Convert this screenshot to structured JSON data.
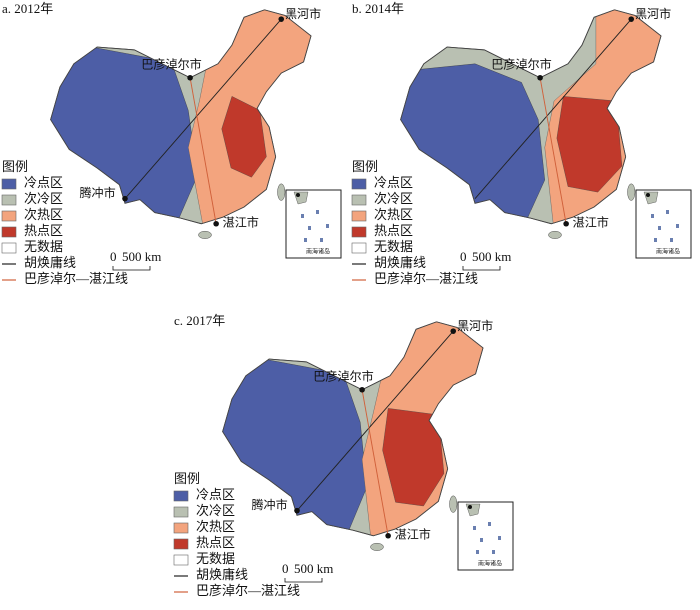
{
  "panels": [
    {
      "title": "a. 2012年",
      "cities": [
        "黑河市",
        "巴彦淖尔市",
        "腾冲市",
        "湛江市"
      ]
    },
    {
      "title": "b. 2014年",
      "cities": [
        "黑河市",
        "巴彦淖尔市",
        "湛江市"
      ]
    },
    {
      "title": "c. 2017年",
      "cities": [
        "黑河市",
        "巴彦淖尔市",
        "腾冲市",
        "湛江市"
      ]
    }
  ],
  "legend": {
    "title": "图例",
    "items": [
      {
        "label": "冷点区",
        "color": "#4d5ea6"
      },
      {
        "label": "次冷区",
        "color": "#b9c0b2"
      },
      {
        "label": "次热区",
        "color": "#f3a47e"
      },
      {
        "label": "热点区",
        "color": "#c0392b"
      },
      {
        "label": "无数据",
        "color": "#ffffff"
      },
      {
        "label": "胡焕庸线",
        "color": "#222222"
      },
      {
        "label": "巴彦淖尔—湛江线",
        "color": "#d0603a"
      }
    ]
  },
  "scale_bar": {
    "zero": "0",
    "length": "500 km"
  },
  "inset_label": "南海诸岛"
}
